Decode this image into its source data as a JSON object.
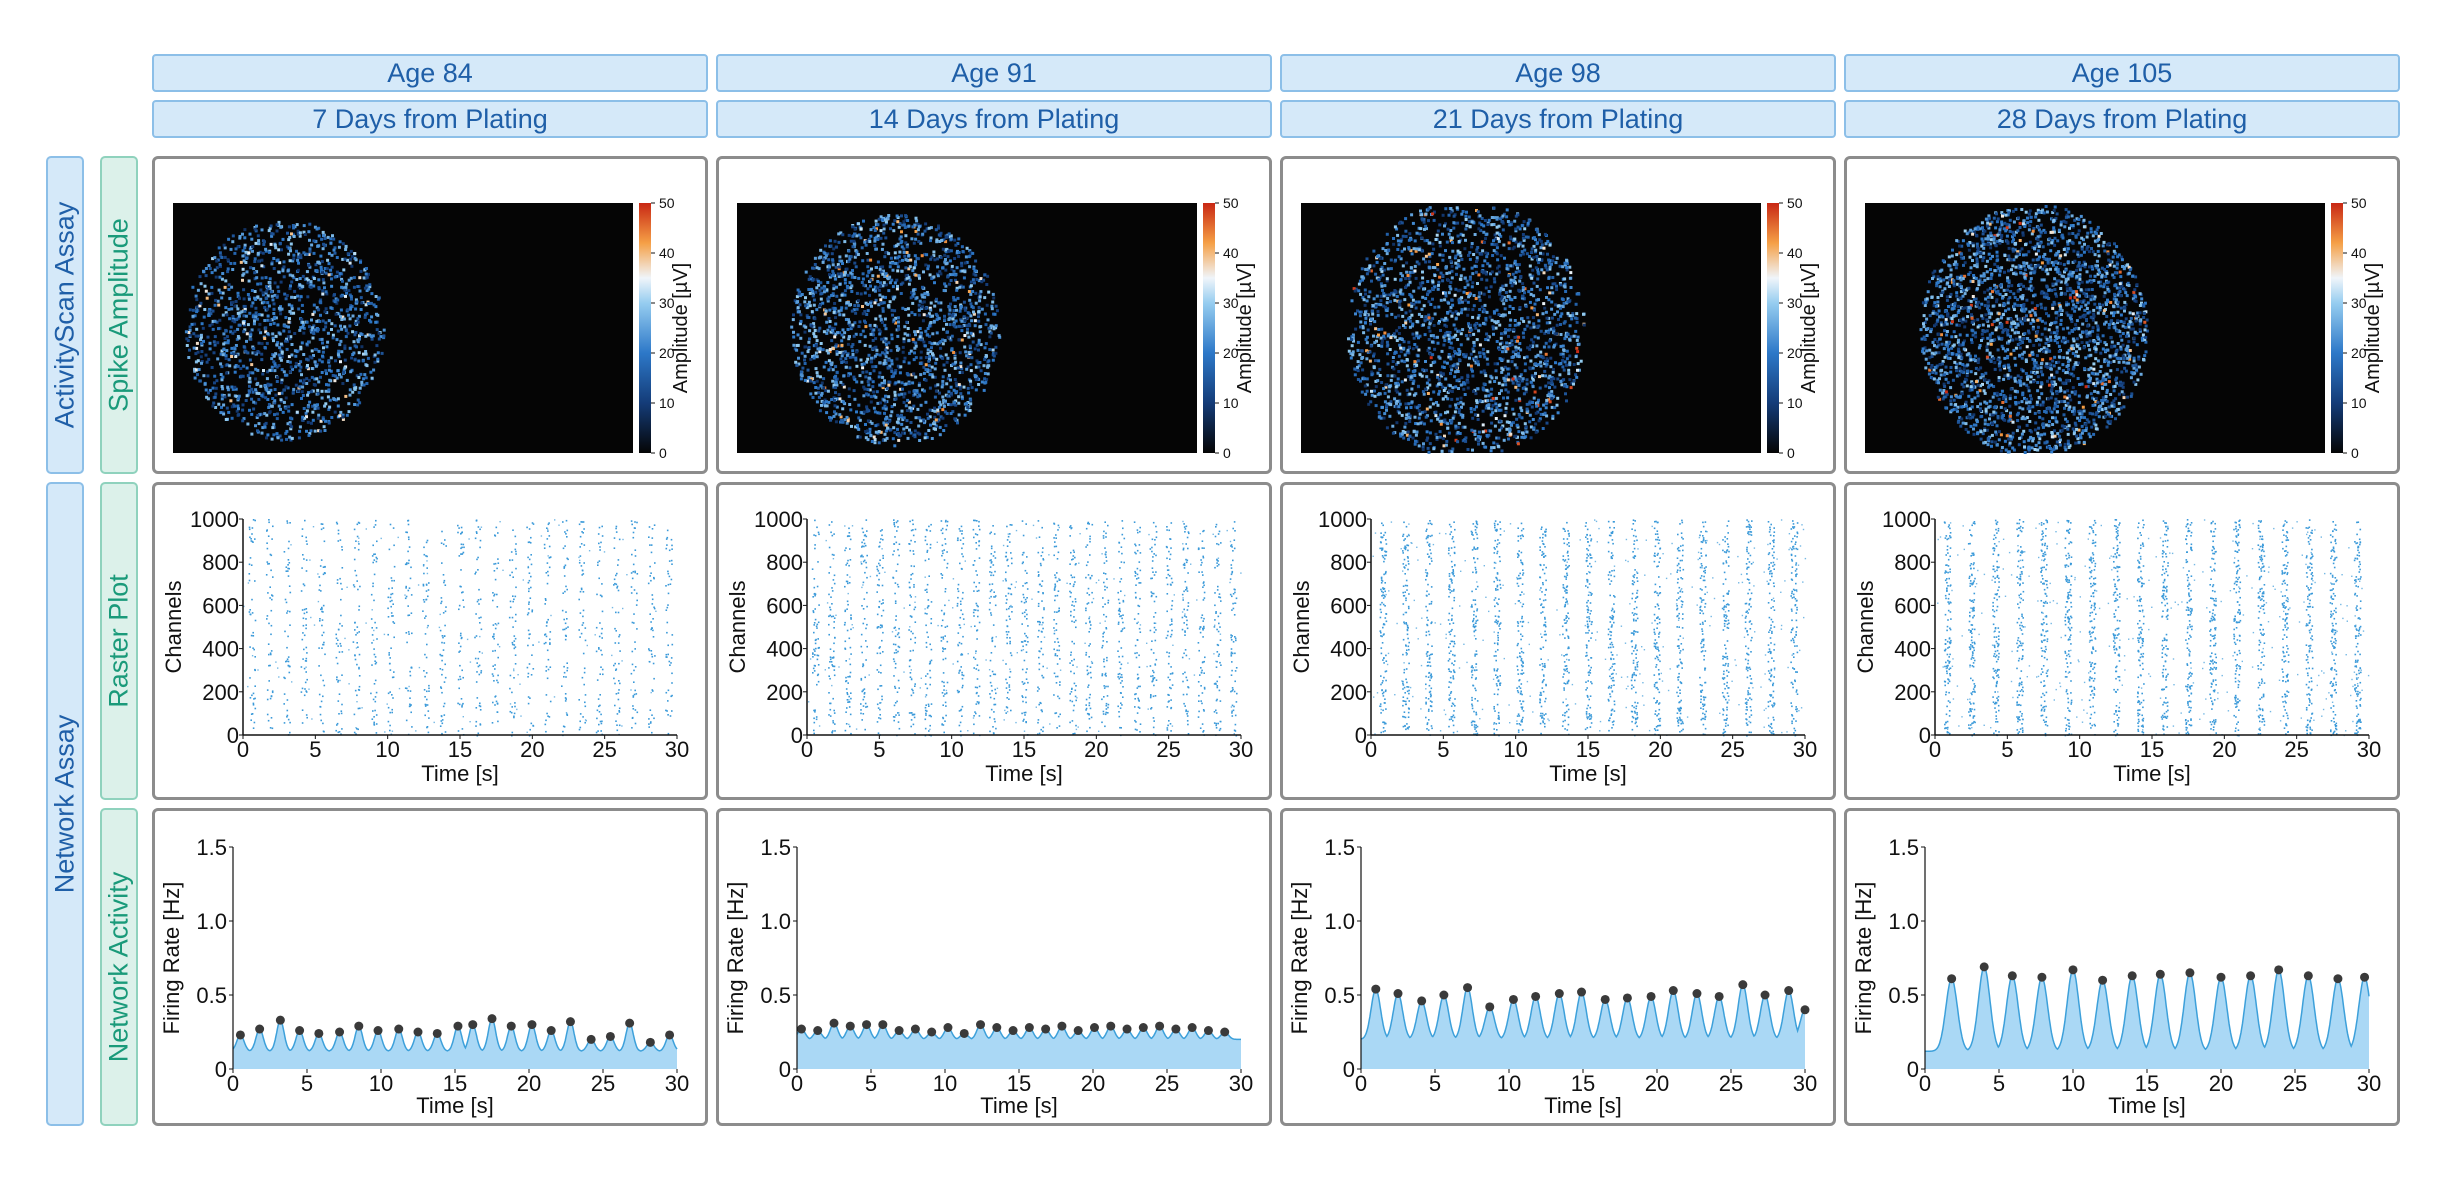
{
  "columns": [
    {
      "age": "Age 84",
      "days": "7 Days from Plating"
    },
    {
      "age": "Age 91",
      "days": "14 Days from Plating"
    },
    {
      "age": "Age 98",
      "days": "21 Days from Plating"
    },
    {
      "age": "Age 105",
      "days": "28 Days from Plating"
    }
  ],
  "row_groups": {
    "activityscan": "ActivityScan Assay",
    "network": "Network Assay"
  },
  "row_labels": {
    "spike_amplitude": "Spike Amplitude",
    "raster_plot": "Raster Plot",
    "network_activity": "Network Activity"
  },
  "colors": {
    "header_fill": "#d5e9f9",
    "header_border": "#8cbfe8",
    "header_text": "#1f5fa8",
    "green_fill": "#dcf1ea",
    "green_border": "#8fd2bd",
    "green_text": "#1a9a7a",
    "raster_dot": "#3b9ad9",
    "rate_fill": "#aad8f5",
    "rate_line": "#3da0da",
    "peak_dot": "#3a3a3a",
    "heatmap_bg": "#050505"
  },
  "chart_data": [
    {
      "type": "heatmap",
      "name": "spike_amplitude",
      "colorbar_label": "Amplitude [µV]",
      "colorbar_ticks": [
        0,
        10,
        20,
        30,
        40,
        50
      ],
      "clim": [
        0,
        50
      ],
      "panels": [
        {
          "column": "Age 84",
          "max_amplitude_uV": 40
        },
        {
          "column": "Age 91",
          "max_amplitude_uV": 44
        },
        {
          "column": "Age 98",
          "max_amplitude_uV": 50
        },
        {
          "column": "Age 105",
          "max_amplitude_uV": 50
        }
      ]
    },
    {
      "type": "scatter",
      "name": "raster_plot",
      "xlabel": "Time [s]",
      "ylabel": "Channels",
      "xlim": [
        0,
        30
      ],
      "ylim": [
        0,
        1000
      ],
      "xticks": [
        0,
        5,
        10,
        15,
        20,
        25,
        30
      ],
      "yticks": [
        0,
        200,
        400,
        600,
        800,
        1000
      ],
      "panels": [
        {
          "column": "Age 84",
          "burst_count": 25
        },
        {
          "column": "Age 91",
          "burst_count": 27
        },
        {
          "column": "Age 98",
          "burst_count": 19
        },
        {
          "column": "Age 105",
          "burst_count": 18
        }
      ]
    },
    {
      "type": "area",
      "name": "network_activity",
      "xlabel": "Time [s]",
      "ylabel": "Firing Rate [Hz]",
      "xlim": [
        0,
        30
      ],
      "ylim": [
        0,
        1.5
      ],
      "xticks": [
        0,
        5,
        10,
        15,
        20,
        25,
        30
      ],
      "yticks": [
        0,
        0.5,
        1.0,
        1.5
      ],
      "ytick_labels": [
        "0",
        "0.5",
        "1.0",
        "1.5"
      ],
      "series": [
        {
          "name": "Age 84",
          "baseline": 0.12,
          "peak_times": [
            0.5,
            1.8,
            3.2,
            4.5,
            5.8,
            7.2,
            8.5,
            9.8,
            11.2,
            12.5,
            13.8,
            15.2,
            16.2,
            17.5,
            18.8,
            20.2,
            21.5,
            22.8,
            24.2,
            25.5,
            26.8,
            28.2,
            29.5
          ],
          "peak_values": [
            0.23,
            0.27,
            0.33,
            0.26,
            0.24,
            0.25,
            0.29,
            0.26,
            0.27,
            0.25,
            0.24,
            0.29,
            0.3,
            0.34,
            0.29,
            0.3,
            0.26,
            0.32,
            0.2,
            0.22,
            0.31,
            0.18,
            0.23
          ]
        },
        {
          "name": "Age 91",
          "baseline": 0.2,
          "peak_times": [
            0.3,
            1.4,
            2.5,
            3.6,
            4.7,
            5.8,
            6.9,
            8.0,
            9.1,
            10.2,
            11.3,
            12.4,
            13.5,
            14.6,
            15.7,
            16.8,
            17.9,
            19.0,
            20.1,
            21.2,
            22.3,
            23.4,
            24.5,
            25.6,
            26.7,
            27.8,
            28.9
          ],
          "peak_values": [
            0.27,
            0.26,
            0.31,
            0.29,
            0.3,
            0.3,
            0.26,
            0.27,
            0.25,
            0.28,
            0.24,
            0.3,
            0.28,
            0.26,
            0.28,
            0.27,
            0.29,
            0.26,
            0.28,
            0.29,
            0.27,
            0.28,
            0.29,
            0.27,
            0.28,
            0.26,
            0.25
          ]
        },
        {
          "name": "Age 98",
          "baseline": 0.2,
          "peak_times": [
            1.0,
            2.5,
            4.1,
            5.6,
            7.2,
            8.7,
            10.3,
            11.8,
            13.4,
            14.9,
            16.5,
            18.0,
            19.6,
            21.1,
            22.7,
            24.2,
            25.8,
            27.3,
            28.9,
            30.0
          ],
          "peak_values": [
            0.54,
            0.51,
            0.46,
            0.5,
            0.55,
            0.42,
            0.47,
            0.49,
            0.51,
            0.52,
            0.47,
            0.48,
            0.49,
            0.53,
            0.51,
            0.49,
            0.57,
            0.5,
            0.53,
            0.4
          ]
        },
        {
          "name": "Age 105",
          "baseline": 0.12,
          "peak_times": [
            1.8,
            4.0,
            5.9,
            7.9,
            10.0,
            12.0,
            14.0,
            15.9,
            17.9,
            20.0,
            22.0,
            23.9,
            25.9,
            27.9,
            29.7
          ],
          "peak_values": [
            0.61,
            0.69,
            0.63,
            0.62,
            0.67,
            0.6,
            0.63,
            0.64,
            0.65,
            0.62,
            0.63,
            0.67,
            0.63,
            0.61,
            0.62
          ]
        }
      ]
    }
  ]
}
